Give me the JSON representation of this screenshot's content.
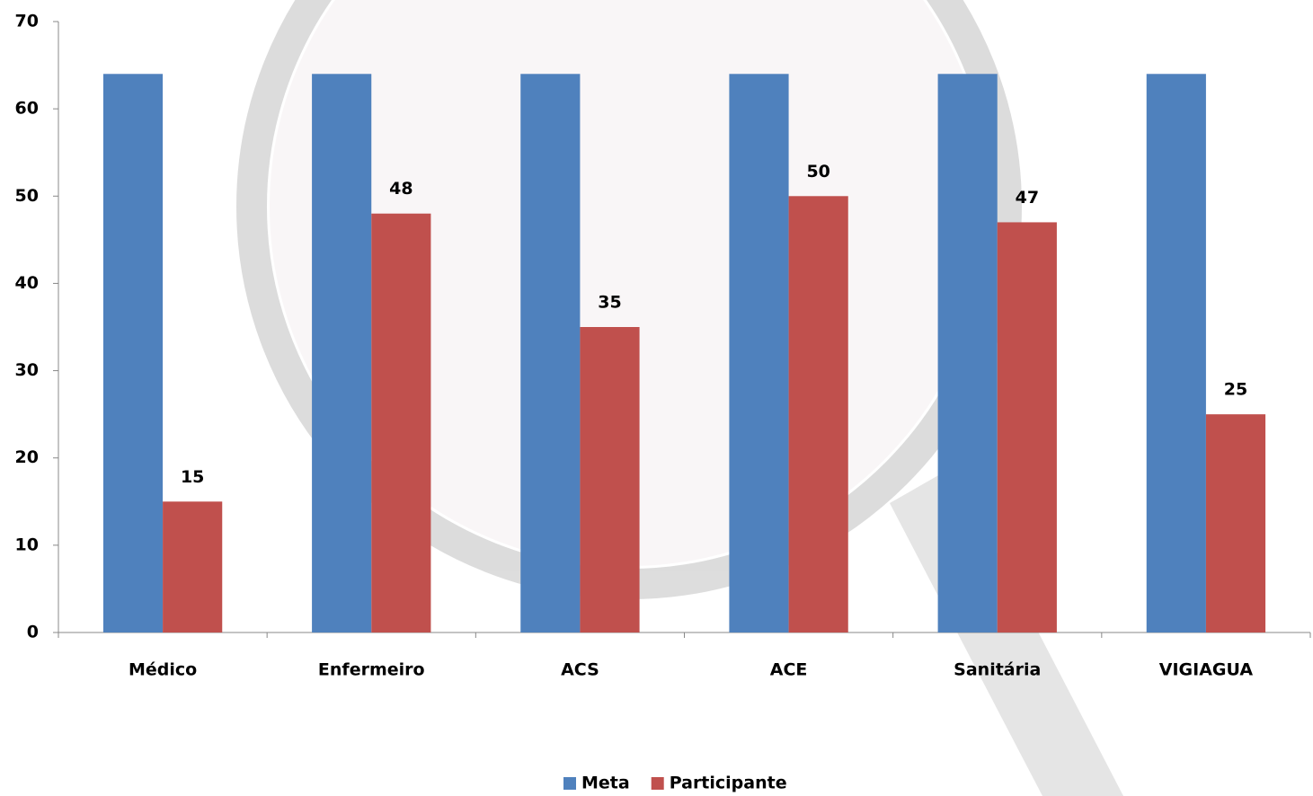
{
  "chart_data": {
    "type": "bar",
    "categories": [
      "Médico",
      "Enfermeiro",
      "ACS",
      "ACE",
      "Sanitária",
      "VIGIAGUA"
    ],
    "series": [
      {
        "name": "Meta",
        "color": "#4f81bd",
        "values": [
          64,
          64,
          64,
          64,
          64,
          64
        ]
      },
      {
        "name": "Participante",
        "color": "#c0504d",
        "values": [
          15,
          48,
          35,
          50,
          47,
          25
        ],
        "data_labels": true
      }
    ],
    "ylim": [
      0,
      70
    ],
    "yticks": [
      0,
      10,
      20,
      30,
      40,
      50,
      60,
      70
    ],
    "grid": false,
    "legend": "bottom"
  }
}
